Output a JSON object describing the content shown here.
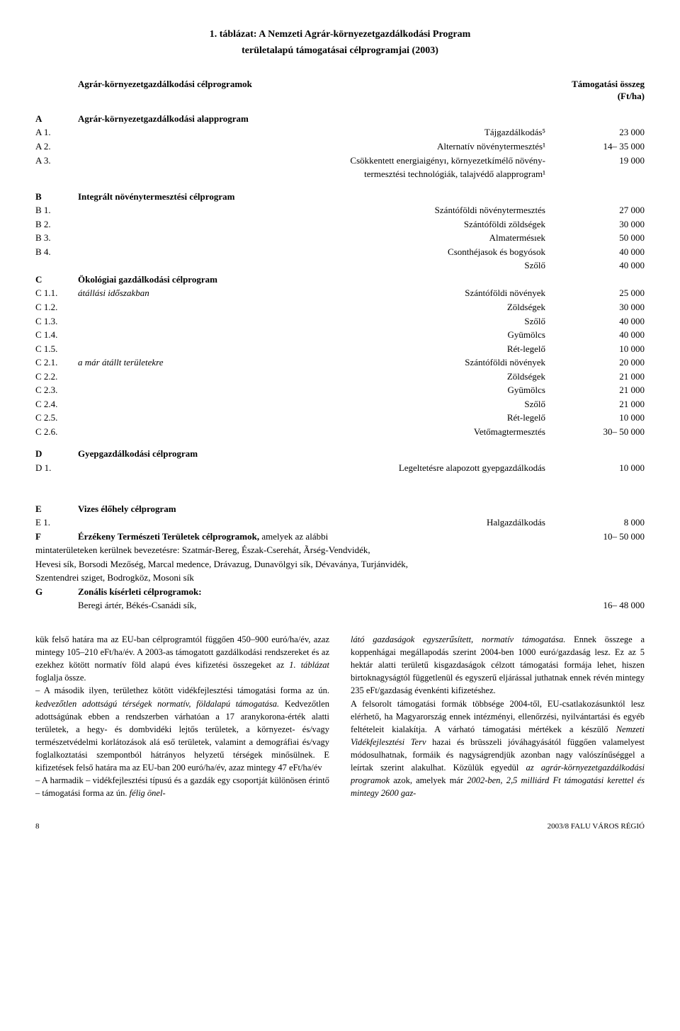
{
  "title_line1": "1. táblázat: A Nemzeti Agrár-környezetgazdálkodási Program",
  "title_line2": "területalapú támogatásai célprogramjai (2003)",
  "header": {
    "left": "Agrár-környezetgazdálkodási célprogramok",
    "right1": "Támogatási összeg",
    "right2": "(Ft/ha)"
  },
  "sections": {
    "A": {
      "code": "A",
      "title": "Agrár-környezetgazdálkodási alapprogram",
      "rows": [
        {
          "code": "A 1.",
          "label": "Tájgazdálkodás⁵",
          "amount": "23 000"
        },
        {
          "code": "A 2.",
          "label": "Alternatív növénytermesztés¹",
          "amount": "14– 35 000"
        },
        {
          "code": "A 3.",
          "label": "Csökkentett energiaigényı, környezetkímélő növény-",
          "amount": "19 000"
        },
        {
          "code": "",
          "label": "termesztési technológiák, talajvédő alapprogram¹",
          "amount": ""
        }
      ]
    },
    "B": {
      "code": "B",
      "title": "Integrált növénytermesztési célprogram",
      "rows": [
        {
          "code": "B 1.",
          "label": "Szántóföldi növénytermesztés",
          "amount": "27 000"
        },
        {
          "code": "B 2.",
          "label": "Szántóföldi zöldségek",
          "amount": "30 000"
        },
        {
          "code": "B 3.",
          "label": "Almatermésıek",
          "amount": "50 000"
        },
        {
          "code": "B 4.",
          "label": "Csonthéjasok és bogyósok",
          "amount": "40 000"
        },
        {
          "code": "",
          "label": "Szőlő",
          "amount": "40 000"
        }
      ]
    },
    "C": {
      "code": "C",
      "title": "Ökológiai gazdálkodási célprogram",
      "rows": [
        {
          "code": "C 1.1.",
          "sub": "átállási időszakban",
          "label": "Szántóföldi növények",
          "amount": "25 000"
        },
        {
          "code": "C 1.2.",
          "sub": "",
          "label": "Zöldségek",
          "amount": "30 000"
        },
        {
          "code": "C 1.3.",
          "sub": "",
          "label": "Szőlő",
          "amount": "40 000"
        },
        {
          "code": "C 1.4.",
          "sub": "",
          "label": "Gyümölcs",
          "amount": "40 000"
        },
        {
          "code": "C 1.5.",
          "sub": "",
          "label": "Rét-legelő",
          "amount": "10 000"
        },
        {
          "code": "C 2.1.",
          "sub": "a már átállt területekre",
          "label": "Szántóföldi növények",
          "amount": "20 000"
        },
        {
          "code": "C 2.2.",
          "sub": "",
          "label": "Zöldségek",
          "amount": "21 000"
        },
        {
          "code": "C 2.3.",
          "sub": "",
          "label": "Gyümölcs",
          "amount": "21 000"
        },
        {
          "code": "C 2.4.",
          "sub": "",
          "label": "Szőlő",
          "amount": "21 000"
        },
        {
          "code": "C 2.5.",
          "sub": "",
          "label": "Rét-legelő",
          "amount": "10 000"
        },
        {
          "code": "C 2.6.",
          "sub": "",
          "label": "Vetőmagtermesztés",
          "amount": "30– 50 000"
        }
      ]
    },
    "D": {
      "code": "D",
      "title": "Gyepgazdálkodási célprogram",
      "rows": [
        {
          "code": "D 1.",
          "label": "Legeltetésre alapozott gyepgazdálkodás",
          "amount": "10 000"
        }
      ]
    },
    "E": {
      "code": "E",
      "title": "Vizes élőhely célprogram",
      "rows": [
        {
          "code": "E 1.",
          "label": "Halgazdálkodás",
          "amount": "8 000"
        }
      ]
    },
    "F": {
      "code": "F",
      "title_bold": "Érzékeny Természeti Területek célprogramok,",
      "title_rest": " amelyek az alábbi",
      "amount": "10– 50 000",
      "lines": [
        "mintaterületeken kerülnek bevezetésre: Szatmár-Bereg, Észak-Cserehát, Ãrség-Vendvidék,",
        "Hevesi sík, Borsodi Mezőség, Marcal medence, Drávazug, Dunavölgyi sík, Dévaványa, Turjánvidék,",
        "Szentendrei sziget, Bodrogköz, Mosoni sík"
      ]
    },
    "G": {
      "code": "G",
      "title": "Zonális kísérleti célprogramok:",
      "rows": [
        {
          "code": "",
          "label": "Beregi ártér, Békés-Csanádi sík,",
          "amount": "16– 48 000"
        }
      ]
    }
  },
  "body": {
    "left": "kük felső határa ma az EU-ban célprogramtól függően 450–900 euró/ha/év, azaz mintegy 105–210 eFt/ha/év. A 2003-as támogatott gazdálkodási rendszereket és az ezekhez kötött normatív föld alapú éves kifizetési összegeket az 1. táblázat foglalja össze.\n– A második ilyen, területhez kötött vidékfejlesztési támogatási forma az ún. kedvezőtlen adottságú térségek normatív, földalapú támogatása. Kedvezőtlen adottságúnak ebben a rendszerben várhatóan a 17 aranykorona-érték alatti területek, a hegy- és dombvidéki lejtős területek, a környezet- és/vagy természetvédelmi korlátozások alá eső területek, valamint a demográfiai és/vagy foglalkoztatási szempontból hátrányos helyzetű térségek minősülnek. E kifizetések felső határa ma az EU-ban 200 euró/ha/év, azaz mintegy 47 eFt/ha/év\n– A harmadik – vidékfejlesztési típusú és a gazdák egy csoportját különösen érintő – támogatási forma az ún. félig önel-",
    "right": "látó gazdaságok egyszerűsített, normatív támogatása. Ennek összege a koppenhágai megállapodás szerint 2004-ben 1000 euró/gazdaság lesz. Ez az 5 hektár alatti területű kisgazdaságok célzott támogatási formája lehet, hiszen birtoknagyságtól függetlenül és egyszerű eljárással juthatnak ennek révén mintegy 235 eFt/gazdaság évenkénti kifizetéshez.\nA felsorolt támogatási formák többsége 2004-től, EU-csatlakozásunktól lesz elérhető, ha Magyarország ennek intézményi, ellenőrzési, nyilvántartási és egyéb feltételeit kialakítja. A várható támogatási mértékek a készülő Nemzeti Vidékfejlesztési Terv hazai és brüsszeli jóváhagyásától függően valamelyest módosulhatnak, formáik és nagyságrendjük azonban nagy valószínűséggel a leírtak szerint alakulhat. Közülük egyedül az agrár-környezetgazdálkodási programok azok, amelyek már 2002-ben, 2,5 milliárd Ft támogatási kerettel és mintegy 2600 gaz-"
  },
  "footer": {
    "page": "8",
    "right": "2003/8 FALU VÁROS RÉGIÓ"
  }
}
